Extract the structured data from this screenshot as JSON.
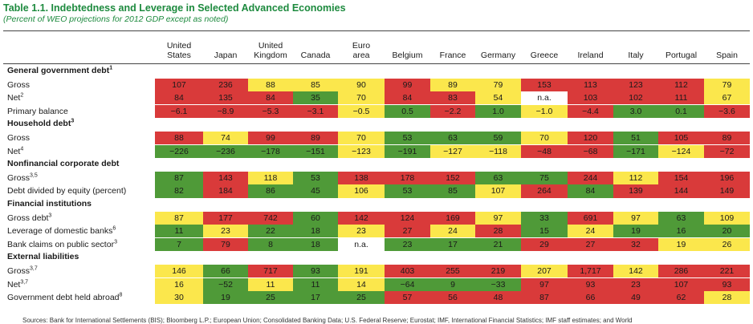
{
  "title": "Table 1.1. Indebtedness and Leverage in Selected Advanced Economies",
  "subtitle": "(Percent of WEO projections for 2012 GDP except as noted)",
  "columns": [
    "United\nStates",
    "Japan",
    "United\nKingdom",
    "Canada",
    "Euro\narea",
    "Belgium",
    "France",
    "Germany",
    "Greece",
    "Ireland",
    "Italy",
    "Portugal",
    "Spain"
  ],
  "colors": {
    "red": "#d93a3a",
    "yellow": "#fbe74c",
    "green": "#4f9a38",
    "title_green": "#1d8a3e"
  },
  "sections": [
    {
      "label": "General government debt",
      "sup": "1",
      "rows": [
        {
          "label": "Gross",
          "sup": "",
          "cells": [
            [
              "107",
              "r"
            ],
            [
              "236",
              "r"
            ],
            [
              "88",
              "y"
            ],
            [
              "85",
              "y"
            ],
            [
              "90",
              "y"
            ],
            [
              "99",
              "r"
            ],
            [
              "89",
              "y"
            ],
            [
              "79",
              "y"
            ],
            [
              "153",
              "r"
            ],
            [
              "113",
              "r"
            ],
            [
              "123",
              "r"
            ],
            [
              "112",
              "r"
            ],
            [
              "79",
              "y"
            ]
          ]
        },
        {
          "label": "Net",
          "sup": "2",
          "cells": [
            [
              "84",
              "r"
            ],
            [
              "135",
              "r"
            ],
            [
              "84",
              "r"
            ],
            [
              "35",
              "g"
            ],
            [
              "70",
              "y"
            ],
            [
              "84",
              "r"
            ],
            [
              "83",
              "r"
            ],
            [
              "54",
              "y"
            ],
            [
              "n.a.",
              "w"
            ],
            [
              "103",
              "r"
            ],
            [
              "102",
              "r"
            ],
            [
              "111",
              "r"
            ],
            [
              "67",
              "y"
            ]
          ]
        },
        {
          "label": "Primary balance",
          "sup": "",
          "cells": [
            [
              "−6.1",
              "r"
            ],
            [
              "−8.9",
              "r"
            ],
            [
              "−5.3",
              "r"
            ],
            [
              "−3.1",
              "r"
            ],
            [
              "−0.5",
              "y"
            ],
            [
              "0.5",
              "g"
            ],
            [
              "−2.2",
              "r"
            ],
            [
              "1.0",
              "g"
            ],
            [
              "−1.0",
              "y"
            ],
            [
              "−4.4",
              "r"
            ],
            [
              "3.0",
              "g"
            ],
            [
              "0.1",
              "g"
            ],
            [
              "−3.6",
              "r"
            ]
          ]
        }
      ]
    },
    {
      "label": "Household debt",
      "sup": "3",
      "rows": [
        {
          "label": "Gross",
          "sup": "",
          "cells": [
            [
              "88",
              "r"
            ],
            [
              "74",
              "y"
            ],
            [
              "99",
              "r"
            ],
            [
              "89",
              "r"
            ],
            [
              "70",
              "y"
            ],
            [
              "53",
              "g"
            ],
            [
              "63",
              "g"
            ],
            [
              "59",
              "g"
            ],
            [
              "70",
              "y"
            ],
            [
              "120",
              "r"
            ],
            [
              "51",
              "g"
            ],
            [
              "105",
              "r"
            ],
            [
              "89",
              "r"
            ]
          ]
        },
        {
          "label": "Net",
          "sup": "4",
          "cells": [
            [
              "−226",
              "g"
            ],
            [
              "−236",
              "g"
            ],
            [
              "−178",
              "g"
            ],
            [
              "−151",
              "g"
            ],
            [
              "−123",
              "y"
            ],
            [
              "−191",
              "g"
            ],
            [
              "−127",
              "y"
            ],
            [
              "−118",
              "y"
            ],
            [
              "−48",
              "r"
            ],
            [
              "−68",
              "r"
            ],
            [
              "−171",
              "g"
            ],
            [
              "−124",
              "y"
            ],
            [
              "−72",
              "r"
            ]
          ]
        }
      ]
    },
    {
      "label": "Nonfinancial corporate debt",
      "sup": "",
      "rows": [
        {
          "label": "Gross",
          "sup": "3,5",
          "cells": [
            [
              "87",
              "g"
            ],
            [
              "143",
              "r"
            ],
            [
              "118",
              "y"
            ],
            [
              "53",
              "g"
            ],
            [
              "138",
              "r"
            ],
            [
              "178",
              "r"
            ],
            [
              "152",
              "r"
            ],
            [
              "63",
              "g"
            ],
            [
              "75",
              "g"
            ],
            [
              "244",
              "r"
            ],
            [
              "112",
              "y"
            ],
            [
              "154",
              "r"
            ],
            [
              "196",
              "r"
            ]
          ]
        },
        {
          "label": "Debt divided by equity (percent)",
          "sup": "",
          "cells": [
            [
              "82",
              "g"
            ],
            [
              "184",
              "r"
            ],
            [
              "86",
              "g"
            ],
            [
              "45",
              "g"
            ],
            [
              "106",
              "y"
            ],
            [
              "53",
              "g"
            ],
            [
              "85",
              "g"
            ],
            [
              "107",
              "y"
            ],
            [
              "264",
              "r"
            ],
            [
              "84",
              "g"
            ],
            [
              "139",
              "r"
            ],
            [
              "144",
              "r"
            ],
            [
              "149",
              "r"
            ]
          ]
        }
      ]
    },
    {
      "label": "Financial institutions",
      "sup": "",
      "rows": [
        {
          "label": "Gross debt",
          "sup": "3",
          "cells": [
            [
              "87",
              "y"
            ],
            [
              "177",
              "r"
            ],
            [
              "742",
              "r"
            ],
            [
              "60",
              "g"
            ],
            [
              "142",
              "r"
            ],
            [
              "124",
              "r"
            ],
            [
              "169",
              "r"
            ],
            [
              "97",
              "y"
            ],
            [
              "33",
              "g"
            ],
            [
              "691",
              "r"
            ],
            [
              "97",
              "y"
            ],
            [
              "63",
              "g"
            ],
            [
              "109",
              "y"
            ]
          ]
        },
        {
          "label": "Leverage of domestic banks",
          "sup": "6",
          "cells": [
            [
              "11",
              "g"
            ],
            [
              "23",
              "y"
            ],
            [
              "22",
              "g"
            ],
            [
              "18",
              "g"
            ],
            [
              "23",
              "y"
            ],
            [
              "27",
              "r"
            ],
            [
              "24",
              "y"
            ],
            [
              "28",
              "r"
            ],
            [
              "15",
              "g"
            ],
            [
              "24",
              "y"
            ],
            [
              "19",
              "g"
            ],
            [
              "16",
              "g"
            ],
            [
              "20",
              "g"
            ]
          ]
        },
        {
          "label": "Bank claims on public sector",
          "sup": "3",
          "cells": [
            [
              "7",
              "g"
            ],
            [
              "79",
              "r"
            ],
            [
              "8",
              "g"
            ],
            [
              "18",
              "g"
            ],
            [
              "n.a.",
              "w"
            ],
            [
              "23",
              "g"
            ],
            [
              "17",
              "g"
            ],
            [
              "21",
              "g"
            ],
            [
              "29",
              "r"
            ],
            [
              "27",
              "r"
            ],
            [
              "32",
              "r"
            ],
            [
              "19",
              "y"
            ],
            [
              "26",
              "y"
            ]
          ]
        }
      ]
    },
    {
      "label": "External liabilities",
      "sup": "",
      "rows": [
        {
          "label": "Gross",
          "sup": "3,7",
          "cells": [
            [
              "146",
              "y"
            ],
            [
              "66",
              "g"
            ],
            [
              "717",
              "r"
            ],
            [
              "93",
              "g"
            ],
            [
              "191",
              "y"
            ],
            [
              "403",
              "r"
            ],
            [
              "255",
              "r"
            ],
            [
              "219",
              "r"
            ],
            [
              "207",
              "y"
            ],
            [
              "1,717",
              "r"
            ],
            [
              "142",
              "y"
            ],
            [
              "286",
              "r"
            ],
            [
              "221",
              "r"
            ]
          ]
        },
        {
          "label": "Net",
          "sup": "3,7",
          "cells": [
            [
              "16",
              "y"
            ],
            [
              "−52",
              "g"
            ],
            [
              "11",
              "y"
            ],
            [
              "11",
              "g"
            ],
            [
              "14",
              "y"
            ],
            [
              "−64",
              "g"
            ],
            [
              "9",
              "g"
            ],
            [
              "−33",
              "g"
            ],
            [
              "97",
              "r"
            ],
            [
              "93",
              "r"
            ],
            [
              "23",
              "r"
            ],
            [
              "107",
              "r"
            ],
            [
              "93",
              "r"
            ]
          ]
        },
        {
          "label": "Government debt held abroad",
          "sup": "8",
          "cells": [
            [
              "30",
              "y"
            ],
            [
              "19",
              "g"
            ],
            [
              "25",
              "g"
            ],
            [
              "17",
              "g"
            ],
            [
              "25",
              "g"
            ],
            [
              "57",
              "r"
            ],
            [
              "56",
              "r"
            ],
            [
              "48",
              "r"
            ],
            [
              "87",
              "r"
            ],
            [
              "66",
              "r"
            ],
            [
              "49",
              "r"
            ],
            [
              "62",
              "r"
            ],
            [
              "28",
              "y"
            ]
          ]
        }
      ]
    }
  ],
  "footer": "Sources: Bank for International Settlements (BIS); Bloomberg L.P.; European Union; Consolidated Banking Data; U.S. Federal Reserve; Eurostat; IMF, International Financial Statistics; IMF staff estimates; and World"
}
